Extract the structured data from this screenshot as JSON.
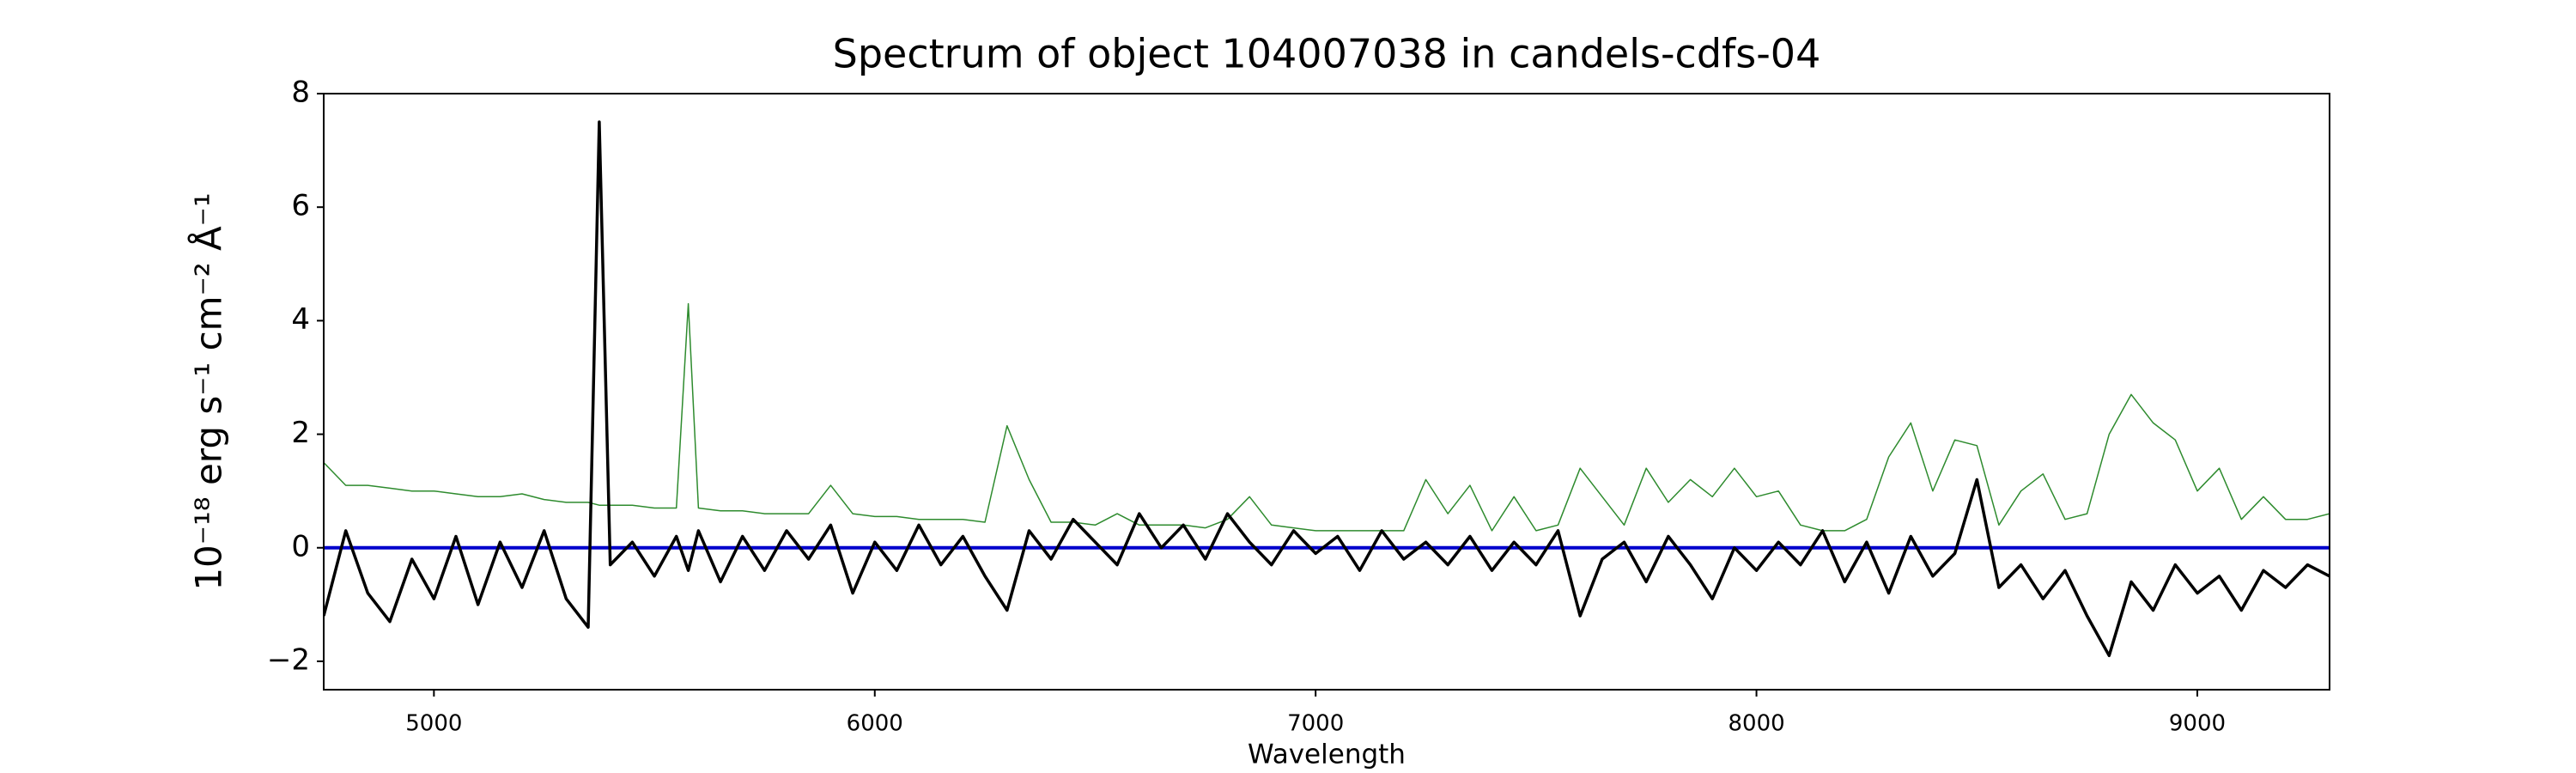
{
  "chart_data": {
    "type": "line",
    "title": "Spectrum of object 104007038 in candels-cdfs-04",
    "xlabel": "Wavelength",
    "ylabel": "10⁻¹⁸ erg s⁻¹ cm⁻² Å⁻¹",
    "x": [
      4750,
      4800,
      4850,
      4900,
      4950,
      5000,
      5050,
      5100,
      5150,
      5200,
      5250,
      5300,
      5350,
      5375,
      5400,
      5450,
      5500,
      5550,
      5577,
      5600,
      5650,
      5700,
      5750,
      5800,
      5850,
      5900,
      5950,
      6000,
      6050,
      6100,
      6150,
      6200,
      6250,
      6300,
      6350,
      6400,
      6450,
      6500,
      6550,
      6600,
      6650,
      6700,
      6750,
      6800,
      6850,
      6900,
      6950,
      7000,
      7050,
      7100,
      7150,
      7200,
      7250,
      7300,
      7350,
      7400,
      7450,
      7500,
      7550,
      7600,
      7650,
      7700,
      7750,
      7800,
      7850,
      7900,
      7950,
      8000,
      8050,
      8100,
      8150,
      8200,
      8250,
      8300,
      8350,
      8400,
      8450,
      8500,
      8550,
      8600,
      8650,
      8700,
      8750,
      8800,
      8850,
      8900,
      8950,
      9000,
      9050,
      9100,
      9150,
      9200,
      9250,
      9300
    ],
    "series": [
      {
        "color": "#2e8b2e",
        "width": 1.5,
        "values": [
          1.5,
          1.1,
          1.1,
          1.05,
          1.0,
          1.0,
          0.95,
          0.9,
          0.9,
          0.95,
          0.85,
          0.8,
          0.8,
          0.75,
          0.75,
          0.75,
          0.7,
          0.7,
          4.3,
          0.7,
          0.65,
          0.65,
          0.6,
          0.6,
          0.6,
          1.1,
          0.6,
          0.55,
          0.55,
          0.5,
          0.5,
          0.5,
          0.45,
          2.15,
          1.2,
          0.45,
          0.45,
          0.4,
          0.6,
          0.4,
          0.4,
          0.4,
          0.35,
          0.5,
          0.9,
          0.4,
          0.35,
          0.3,
          0.3,
          0.3,
          0.3,
          0.3,
          1.2,
          0.6,
          1.1,
          0.3,
          0.9,
          0.3,
          0.4,
          1.4,
          0.9,
          0.4,
          1.4,
          0.8,
          1.2,
          0.9,
          1.4,
          0.9,
          1.0,
          0.4,
          0.3,
          0.3,
          0.5,
          1.6,
          2.2,
          1.0,
          1.9,
          1.8,
          0.4,
          1.0,
          1.3,
          0.5,
          0.6,
          2.0,
          2.7,
          2.2,
          1.9,
          1.0,
          1.4,
          0.5,
          0.9,
          0.5,
          0.5,
          0.6
        ]
      },
      {
        "color": "#0000cc",
        "width": 4,
        "x": [
          4750,
          9300
        ],
        "values": [
          0,
          0
        ]
      },
      {
        "color": "#000000",
        "width": 3.5,
        "values": [
          -1.2,
          0.3,
          -0.8,
          -1.3,
          -0.2,
          -0.9,
          0.2,
          -1.0,
          0.1,
          -0.7,
          0.3,
          -0.9,
          -1.4,
          7.5,
          -0.3,
          0.1,
          -0.5,
          0.2,
          -0.4,
          0.3,
          -0.6,
          0.2,
          -0.4,
          0.3,
          -0.2,
          0.4,
          -0.8,
          0.1,
          -0.4,
          0.4,
          -0.3,
          0.2,
          -0.5,
          -1.1,
          0.3,
          -0.2,
          0.5,
          0.1,
          -0.3,
          0.6,
          0.0,
          0.4,
          -0.2,
          0.6,
          0.1,
          -0.3,
          0.3,
          -0.1,
          0.2,
          -0.4,
          0.3,
          -0.2,
          0.1,
          -0.3,
          0.2,
          -0.4,
          0.1,
          -0.3,
          0.3,
          -1.2,
          -0.2,
          0.1,
          -0.6,
          0.2,
          -0.3,
          -0.9,
          0.0,
          -0.4,
          0.1,
          -0.3,
          0.3,
          -0.6,
          0.1,
          -0.8,
          0.2,
          -0.5,
          -0.1,
          1.2,
          -0.7,
          -0.3,
          -0.9,
          -0.4,
          -1.2,
          -1.9,
          -0.6,
          -1.1,
          -0.3,
          -0.8,
          -0.5,
          -1.1,
          -0.4,
          -0.7,
          -0.3,
          -0.5
        ]
      }
    ],
    "xlim": [
      4750,
      9300
    ],
    "ylim": [
      -2.5,
      8
    ],
    "xticks": [
      5000,
      6000,
      7000,
      8000,
      9000
    ],
    "yticks": [
      {
        "value": -2,
        "label": "−2"
      },
      0,
      2,
      4,
      6,
      8
    ]
  }
}
